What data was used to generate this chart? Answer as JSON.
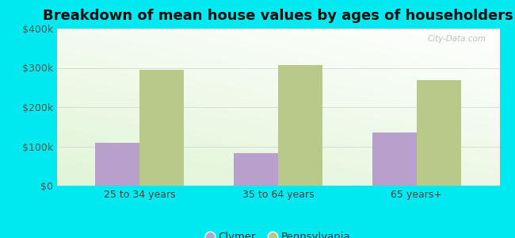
{
  "title": "Breakdown of mean house values by ages of householders",
  "categories": [
    "25 to 34 years",
    "35 to 64 years",
    "65 years+"
  ],
  "clymer_values": [
    110000,
    82000,
    135000
  ],
  "pennsylvania_values": [
    295000,
    308000,
    268000
  ],
  "ylim": [
    0,
    400000
  ],
  "yticks": [
    0,
    100000,
    200000,
    300000,
    400000
  ],
  "ytick_labels": [
    "$0",
    "$100k",
    "$200k",
    "$300k",
    "$400k"
  ],
  "bar_color_clymer": "#b99fcc",
  "bar_color_pennsylvania": "#b8c98a",
  "background_outer": "#00e8f0",
  "grid_color": "#cccccc",
  "legend_label_clymer": "Clymer",
  "legend_label_pennsylvania": "Pennsylvania",
  "bar_width": 0.32,
  "title_fontsize": 13,
  "tick_fontsize": 9,
  "legend_fontsize": 9.5,
  "watermark": "City-Data.com"
}
